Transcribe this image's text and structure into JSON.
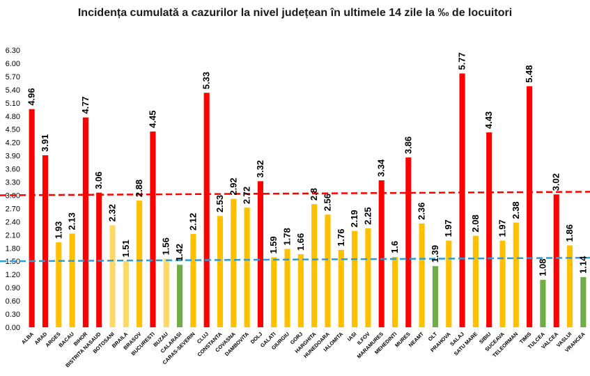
{
  "chart_data": {
    "type": "bar",
    "title": "Incidența cumulată a cazurilor la nivel județean în ultimele 14 zile la ‰ de locuitori",
    "xlabel": "",
    "ylabel": "",
    "ylim": [
      0,
      6.3
    ],
    "y_ticks": [
      "0.00",
      "0.30",
      "0.60",
      "0.90",
      "1.20",
      "1.50",
      "1.80",
      "2.10",
      "2.40",
      "2.70",
      "3.00",
      "3.30",
      "3.60",
      "3.90",
      "4.20",
      "4.50",
      "4.80",
      "5.10",
      "5.40",
      "5.70",
      "6.00",
      "6.30"
    ],
    "categories": [
      "ALBA",
      "ARAD",
      "ARGES",
      "BACAU",
      "BIHOR",
      "BISTRITA NASAUD",
      "BOTOSANI",
      "BRAILA",
      "BRASOV",
      "BUCURESTI",
      "BUZAU",
      "CALARASI",
      "CARAS-SEVERIN",
      "CLUJ",
      "CONSTANTA",
      "COVASNA",
      "DAMBOVITA",
      "DOLJ",
      "GALATI",
      "GIURGIU",
      "GORJ",
      "HARGHITA",
      "HUNEDOARA",
      "IALOMITA",
      "IASI",
      "ILFOV",
      "MARAMURES",
      "MEHEDINTI",
      "MURES",
      "NEAMT",
      "OLT",
      "PRAHOVA",
      "SALAJ",
      "SATU MARE",
      "SIBIU",
      "SUCEAVA",
      "TELEORMAN",
      "TIMIS",
      "TULCEA",
      "VALCEA",
      "VASLUI",
      "VRANCEA"
    ],
    "values": [
      4.96,
      3.91,
      1.93,
      2.13,
      4.77,
      3.06,
      2.32,
      1.51,
      2.88,
      4.45,
      1.56,
      1.42,
      2.12,
      5.33,
      2.53,
      2.92,
      2.72,
      3.32,
      1.59,
      1.78,
      1.66,
      2.8,
      2.56,
      1.76,
      2.19,
      2.25,
      3.34,
      1.6,
      3.86,
      2.36,
      1.39,
      1.97,
      5.77,
      2.08,
      4.43,
      1.97,
      2.38,
      5.48,
      1.08,
      3.02,
      1.86,
      1.14
    ],
    "value_labels": [
      "4.96",
      "3.91",
      "1.93",
      "2.13",
      "4.77",
      "3.06",
      "2.32",
      "1.51",
      "2.88",
      "4.45",
      "1.56",
      "1.42",
      "2.12",
      "5.33",
      "2.53",
      "2.92",
      "2.72",
      "3.32",
      "1.59",
      "1.78",
      "1.66",
      "2.8",
      "2.56",
      "1.76",
      "2.19",
      "2.25",
      "3.34",
      "1.6",
      "3.86",
      "2.36",
      "1.39",
      "1.97",
      "5.77",
      "2.08",
      "4.43",
      "1.97",
      "2.38",
      "5.48",
      "1.08",
      "3.02",
      "1.86",
      "1.14"
    ],
    "bar_colors": [
      "#ff0000",
      "#ff0000",
      "#ffc000",
      "#ffc000",
      "#ff0000",
      "#ff0000",
      "#ffd966",
      "#ffd966",
      "#ffc000",
      "#ff0000",
      "#ffd966",
      "#70ad47",
      "#ffc000",
      "#ff0000",
      "#ffc000",
      "#ffc000",
      "#ffc000",
      "#ff0000",
      "#ffc000",
      "#ffc000",
      "#ffc000",
      "#ffc000",
      "#ffc000",
      "#ffc000",
      "#ffc000",
      "#ffc000",
      "#ff0000",
      "#ffc000",
      "#ff0000",
      "#ffc000",
      "#70ad47",
      "#ffc000",
      "#ff0000",
      "#ffc000",
      "#ff0000",
      "#ffc000",
      "#ffc000",
      "#ff0000",
      "#70ad47",
      "#ff0000",
      "#ffc000",
      "#70ad47"
    ],
    "reference_lines": [
      {
        "value_start": 3.0,
        "value_end": 3.08,
        "color": "#ff0000",
        "style": "dashed"
      },
      {
        "value_start": 1.5,
        "value_end": 1.58,
        "color": "#2e9bd6",
        "style": "dashed"
      }
    ],
    "grid": false,
    "legend": "none"
  }
}
